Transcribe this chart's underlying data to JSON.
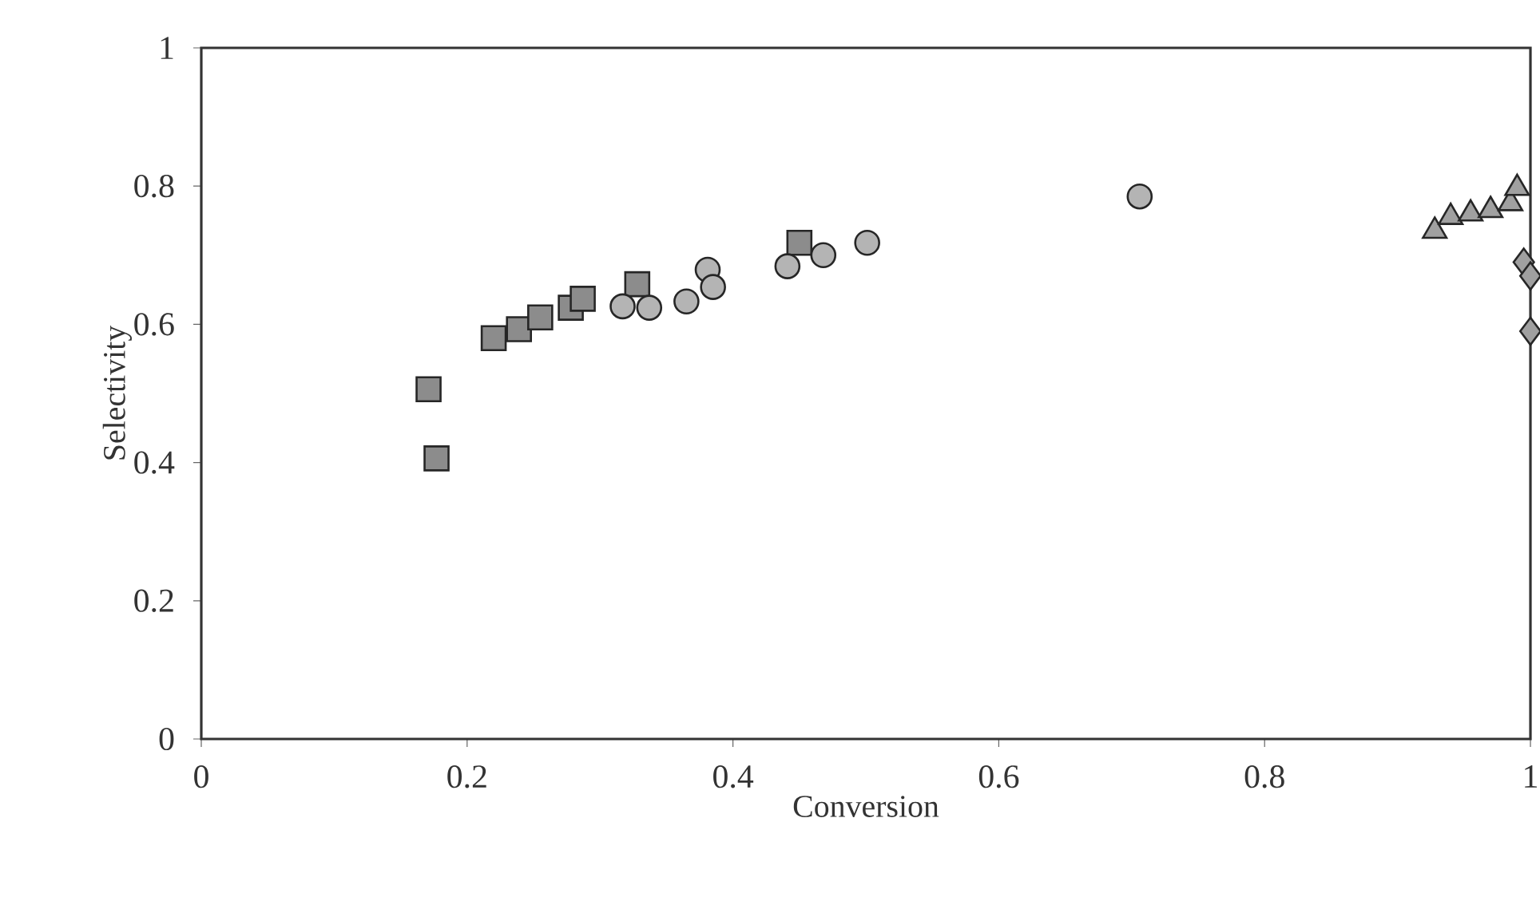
{
  "chart_data": {
    "type": "scatter",
    "xlabel": "Conversion",
    "ylabel": "Selectivity",
    "xlim": [
      0,
      1
    ],
    "ylim": [
      0,
      1
    ],
    "xticks": [
      0,
      0.2,
      0.4,
      0.6,
      0.8,
      1
    ],
    "yticks": [
      0,
      0.2,
      0.4,
      0.6,
      0.8,
      1
    ],
    "grid": false,
    "series": [
      {
        "marker": "square",
        "color": "#8c8c8c",
        "x": [
          0.171,
          0.177,
          0.22,
          0.239,
          0.255,
          0.278,
          0.287,
          0.328,
          0.45
        ],
        "values": [
          0.506,
          0.406,
          0.58,
          0.593,
          0.61,
          0.624,
          0.637,
          0.658,
          0.718
        ]
      },
      {
        "marker": "circle",
        "color": "#b4b4b4",
        "x": [
          0.317,
          0.337,
          0.365,
          0.381,
          0.385,
          0.441,
          0.468,
          0.501,
          0.706
        ],
        "values": [
          0.626,
          0.624,
          0.633,
          0.679,
          0.654,
          0.684,
          0.7,
          0.718,
          0.785
        ]
      },
      {
        "marker": "triangle",
        "color": "#a0a0a0",
        "x": [
          0.928,
          0.94,
          0.955,
          0.97,
          0.985,
          0.99
        ],
        "values": [
          0.735,
          0.755,
          0.76,
          0.765,
          0.775,
          0.797
        ]
      },
      {
        "marker": "diamond",
        "color": "#a0a0a0",
        "x": [
          0.995,
          1.0,
          1.0
        ],
        "values": [
          0.69,
          0.67,
          0.59
        ]
      }
    ]
  }
}
